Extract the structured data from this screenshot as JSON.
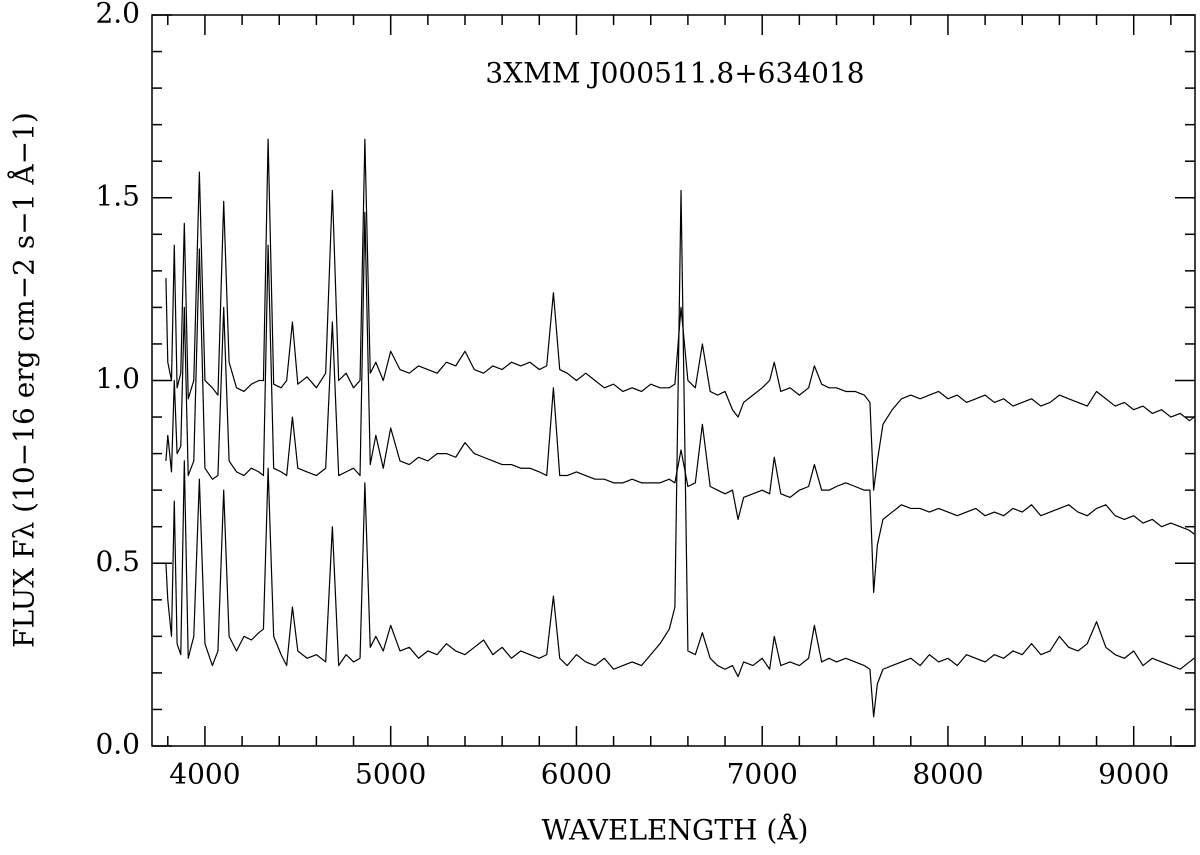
{
  "chart_data": {
    "type": "line",
    "annotation": "3XMM J000511.8+634018",
    "xlabel": "WAVELENGTH (Å)",
    "ylabel": "FLUX Fλ (10−16 erg cm−2 s−1 Å−1)",
    "xlim": [
      3715,
      9330
    ],
    "ylim": [
      0,
      2
    ],
    "xticks": [
      4000,
      5000,
      6000,
      7000,
      8000,
      9000
    ],
    "yticks": [
      {
        "value": 0,
        "label": "0.0"
      },
      0.5,
      {
        "value": 1,
        "label": "1.0"
      },
      1.5,
      {
        "value": 2,
        "label": "2.0"
      }
    ],
    "xminorticks": [
      3800,
      4200,
      4400,
      4600,
      4800,
      5200,
      5400,
      5600,
      5800,
      6200,
      6400,
      6600,
      6800,
      7200,
      7400,
      7600,
      7800,
      8200,
      8400,
      8600,
      8800,
      9200
    ],
    "yminorticks": [
      0.1,
      0.2,
      0.3,
      0.4,
      0.6,
      0.7,
      0.8,
      0.9,
      1.1,
      1.2,
      1.3,
      1.4,
      1.6,
      1.7,
      1.8,
      1.9
    ],
    "x": [
      3790,
      3800,
      3820,
      3835,
      3850,
      3870,
      3889,
      3910,
      3940,
      3970,
      4000,
      4040,
      4070,
      4101,
      4130,
      4170,
      4210,
      4250,
      4290,
      4315,
      4340,
      4370,
      4410,
      4440,
      4471,
      4500,
      4550,
      4600,
      4650,
      4686,
      4720,
      4760,
      4800,
      4835,
      4861,
      4890,
      4920,
      4960,
      5000,
      5050,
      5100,
      5150,
      5200,
      5250,
      5300,
      5350,
      5400,
      5450,
      5500,
      5550,
      5600,
      5650,
      5700,
      5750,
      5800,
      5840,
      5876,
      5910,
      5950,
      6000,
      6050,
      6100,
      6150,
      6200,
      6250,
      6300,
      6350,
      6400,
      6450,
      6500,
      6530,
      6563,
      6600,
      6640,
      6678,
      6720,
      6760,
      6800,
      6840,
      6870,
      6900,
      6950,
      7000,
      7040,
      7065,
      7100,
      7150,
      7200,
      7250,
      7281,
      7320,
      7360,
      7400,
      7450,
      7500,
      7550,
      7580,
      7600,
      7620,
      7650,
      7700,
      7750,
      7800,
      7850,
      7900,
      7950,
      8000,
      8050,
      8100,
      8150,
      8200,
      8250,
      8300,
      8350,
      8400,
      8450,
      8500,
      8550,
      8600,
      8650,
      8700,
      8750,
      8800,
      8850,
      8900,
      8950,
      9000,
      9050,
      9100,
      9150,
      9200,
      9250,
      9300,
      9325
    ],
    "series": [
      {
        "color": "#000000",
        "values": [
          1.28,
          1.05,
          1.0,
          1.37,
          0.98,
          1.02,
          1.43,
          0.95,
          1.0,
          1.57,
          1.0,
          0.98,
          0.96,
          1.49,
          1.05,
          0.98,
          0.97,
          0.99,
          1.0,
          1.0,
          1.66,
          0.99,
          0.98,
          1.0,
          1.16,
          0.99,
          1.01,
          0.98,
          1.02,
          1.52,
          1.0,
          1.02,
          0.98,
          1.0,
          1.66,
          1.02,
          1.05,
          1.0,
          1.08,
          1.03,
          1.02,
          1.04,
          1.03,
          1.02,
          1.05,
          1.04,
          1.08,
          1.03,
          1.02,
          1.04,
          1.03,
          1.05,
          1.04,
          1.05,
          1.03,
          1.04,
          1.24,
          1.03,
          1.02,
          1.0,
          1.02,
          1.0,
          0.98,
          0.99,
          0.97,
          0.98,
          0.97,
          0.99,
          0.98,
          0.98,
          0.99,
          1.2,
          1.0,
          0.98,
          1.1,
          0.97,
          0.96,
          0.97,
          0.92,
          0.9,
          0.94,
          0.96,
          0.98,
          1.0,
          1.05,
          0.97,
          0.98,
          0.96,
          0.98,
          1.04,
          0.99,
          0.98,
          0.98,
          0.97,
          0.97,
          0.96,
          0.94,
          0.7,
          0.78,
          0.88,
          0.92,
          0.95,
          0.96,
          0.95,
          0.96,
          0.97,
          0.95,
          0.96,
          0.94,
          0.95,
          0.96,
          0.94,
          0.95,
          0.93,
          0.94,
          0.95,
          0.93,
          0.94,
          0.96,
          0.95,
          0.94,
          0.93,
          0.97,
          0.95,
          0.93,
          0.94,
          0.92,
          0.93,
          0.91,
          0.92,
          0.9,
          0.91,
          0.89,
          0.9
        ]
      },
      {
        "color": "#000000",
        "values": [
          0.78,
          0.85,
          0.75,
          1.0,
          0.8,
          0.82,
          1.2,
          0.74,
          0.78,
          1.36,
          0.76,
          0.73,
          0.74,
          1.2,
          0.78,
          0.75,
          0.74,
          0.76,
          0.75,
          0.74,
          1.37,
          0.76,
          0.75,
          0.74,
          0.9,
          0.76,
          0.75,
          0.74,
          0.76,
          1.16,
          0.74,
          0.75,
          0.76,
          0.74,
          1.46,
          0.77,
          0.85,
          0.76,
          0.87,
          0.78,
          0.77,
          0.79,
          0.78,
          0.8,
          0.8,
          0.79,
          0.83,
          0.8,
          0.79,
          0.78,
          0.77,
          0.77,
          0.76,
          0.76,
          0.75,
          0.74,
          0.98,
          0.74,
          0.74,
          0.75,
          0.74,
          0.73,
          0.73,
          0.72,
          0.72,
          0.73,
          0.72,
          0.72,
          0.72,
          0.73,
          0.72,
          0.81,
          0.71,
          0.72,
          0.88,
          0.71,
          0.7,
          0.69,
          0.7,
          0.62,
          0.68,
          0.69,
          0.7,
          0.69,
          0.79,
          0.69,
          0.68,
          0.7,
          0.71,
          0.77,
          0.7,
          0.7,
          0.71,
          0.72,
          0.71,
          0.7,
          0.7,
          0.42,
          0.55,
          0.62,
          0.64,
          0.66,
          0.65,
          0.65,
          0.64,
          0.65,
          0.64,
          0.63,
          0.64,
          0.65,
          0.63,
          0.64,
          0.63,
          0.65,
          0.64,
          0.66,
          0.63,
          0.64,
          0.65,
          0.66,
          0.64,
          0.63,
          0.65,
          0.66,
          0.63,
          0.62,
          0.63,
          0.61,
          0.62,
          0.6,
          0.61,
          0.6,
          0.59,
          0.58
        ]
      },
      {
        "color": "#000000",
        "values": [
          0.5,
          0.4,
          0.3,
          0.67,
          0.28,
          0.25,
          0.78,
          0.24,
          0.3,
          0.73,
          0.28,
          0.22,
          0.26,
          0.7,
          0.3,
          0.26,
          0.3,
          0.29,
          0.31,
          0.32,
          0.76,
          0.3,
          0.25,
          0.22,
          0.38,
          0.26,
          0.24,
          0.25,
          0.23,
          0.6,
          0.22,
          0.25,
          0.23,
          0.24,
          0.72,
          0.27,
          0.3,
          0.26,
          0.33,
          0.26,
          0.27,
          0.24,
          0.26,
          0.25,
          0.28,
          0.26,
          0.25,
          0.27,
          0.29,
          0.25,
          0.27,
          0.24,
          0.26,
          0.25,
          0.24,
          0.25,
          0.41,
          0.24,
          0.22,
          0.25,
          0.23,
          0.22,
          0.24,
          0.21,
          0.22,
          0.23,
          0.22,
          0.25,
          0.28,
          0.32,
          0.38,
          1.52,
          0.26,
          0.25,
          0.31,
          0.24,
          0.22,
          0.21,
          0.22,
          0.19,
          0.23,
          0.22,
          0.24,
          0.21,
          0.3,
          0.22,
          0.23,
          0.22,
          0.24,
          0.33,
          0.23,
          0.24,
          0.23,
          0.24,
          0.23,
          0.22,
          0.21,
          0.08,
          0.17,
          0.21,
          0.22,
          0.23,
          0.24,
          0.22,
          0.25,
          0.23,
          0.24,
          0.22,
          0.25,
          0.24,
          0.23,
          0.25,
          0.24,
          0.26,
          0.25,
          0.28,
          0.25,
          0.26,
          0.3,
          0.27,
          0.26,
          0.28,
          0.34,
          0.27,
          0.25,
          0.24,
          0.26,
          0.22,
          0.24,
          0.23,
          0.22,
          0.21,
          0.23,
          0.24
        ]
      }
    ]
  }
}
